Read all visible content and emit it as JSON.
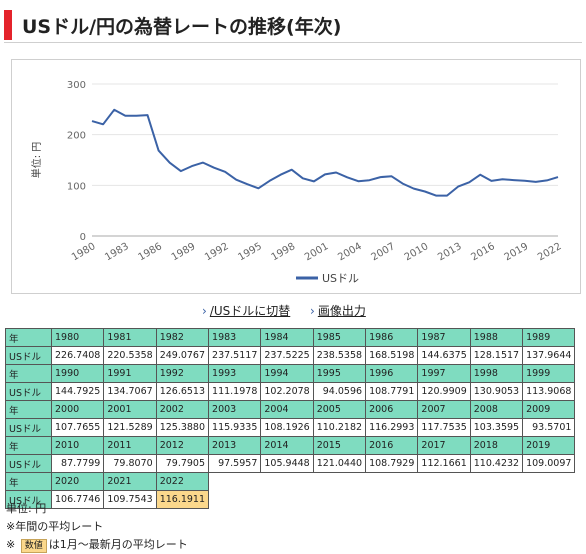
{
  "page_title": "USドル/円の為替レートの推移(年次)",
  "links": {
    "switch_label": "/USドルに切替",
    "export_label": "画像出力"
  },
  "colors": {
    "accent": "#e4232b",
    "line": "#3b62a6",
    "header_bg": "#7fdcc0",
    "latest_bg": "#fbd88c"
  },
  "chart_data": {
    "type": "line",
    "title": "",
    "xlabel": "",
    "ylabel": "単位: 円",
    "ylim": [
      0,
      300
    ],
    "yticks": [
      0,
      100,
      200,
      300
    ],
    "xticks": [
      "1980",
      "1983",
      "1986",
      "1989",
      "1992",
      "1995",
      "1998",
      "2001",
      "2004",
      "2007",
      "2010",
      "2013",
      "2016",
      "2019",
      "2022"
    ],
    "grid": true,
    "legend": "bottom",
    "x": [
      1980,
      1981,
      1982,
      1983,
      1984,
      1985,
      1986,
      1987,
      1988,
      1989,
      1990,
      1991,
      1992,
      1993,
      1994,
      1995,
      1996,
      1997,
      1998,
      1999,
      2000,
      2001,
      2002,
      2003,
      2004,
      2005,
      2006,
      2007,
      2008,
      2009,
      2010,
      2011,
      2012,
      2013,
      2014,
      2015,
      2016,
      2017,
      2018,
      2019,
      2020,
      2021,
      2022
    ],
    "series": [
      {
        "name": "USドル",
        "values": [
          226.7408,
          220.5358,
          249.0767,
          237.5117,
          237.5225,
          238.5358,
          168.5198,
          144.6375,
          128.1517,
          137.9644,
          144.7925,
          134.7067,
          126.6513,
          111.1978,
          102.2078,
          94.0596,
          108.7791,
          120.9909,
          130.9053,
          113.9068,
          107.7655,
          121.5289,
          125.388,
          115.9335,
          108.1926,
          110.2182,
          116.2993,
          117.7535,
          103.3595,
          93.5701,
          87.7799,
          79.807,
          79.7905,
          97.5957,
          105.9448,
          121.044,
          108.7929,
          112.1661,
          110.4232,
          109.0097,
          106.7746,
          109.7543,
          116.1911
        ]
      }
    ]
  },
  "table": {
    "header_label": "年",
    "row_label": "USドル",
    "rows": [
      {
        "years": [
          "1980",
          "1981",
          "1982",
          "1983",
          "1984",
          "1985",
          "1986",
          "1987",
          "1988",
          "1989"
        ],
        "values": [
          "226.7408",
          "220.5358",
          "249.0767",
          "237.5117",
          "237.5225",
          "238.5358",
          "168.5198",
          "144.6375",
          "128.1517",
          "137.9644"
        ]
      },
      {
        "years": [
          "1990",
          "1991",
          "1992",
          "1993",
          "1994",
          "1995",
          "1996",
          "1997",
          "1998",
          "1999"
        ],
        "values": [
          "144.7925",
          "134.7067",
          "126.6513",
          "111.1978",
          "102.2078",
          "94.0596",
          "108.7791",
          "120.9909",
          "130.9053",
          "113.9068"
        ]
      },
      {
        "years": [
          "2000",
          "2001",
          "2002",
          "2003",
          "2004",
          "2005",
          "2006",
          "2007",
          "2008",
          "2009"
        ],
        "values": [
          "107.7655",
          "121.5289",
          "125.3880",
          "115.9335",
          "108.1926",
          "110.2182",
          "116.2993",
          "117.7535",
          "103.3595",
          "93.5701"
        ]
      },
      {
        "years": [
          "2010",
          "2011",
          "2012",
          "2013",
          "2014",
          "2015",
          "2016",
          "2017",
          "2018",
          "2019"
        ],
        "values": [
          "87.7799",
          "79.8070",
          "79.7905",
          "97.5957",
          "105.9448",
          "121.0440",
          "108.7929",
          "112.1661",
          "110.4232",
          "109.0097"
        ]
      },
      {
        "years": [
          "2020",
          "2021",
          "2022"
        ],
        "values": [
          "106.7746",
          "109.7543",
          "116.1911"
        ]
      }
    ]
  },
  "notes": {
    "unit": "単位: 円",
    "annual_avg": "※年間の平均レート",
    "prefix": "※",
    "badge": "数値",
    "latest_note": "は1月～最新月の平均レート"
  }
}
